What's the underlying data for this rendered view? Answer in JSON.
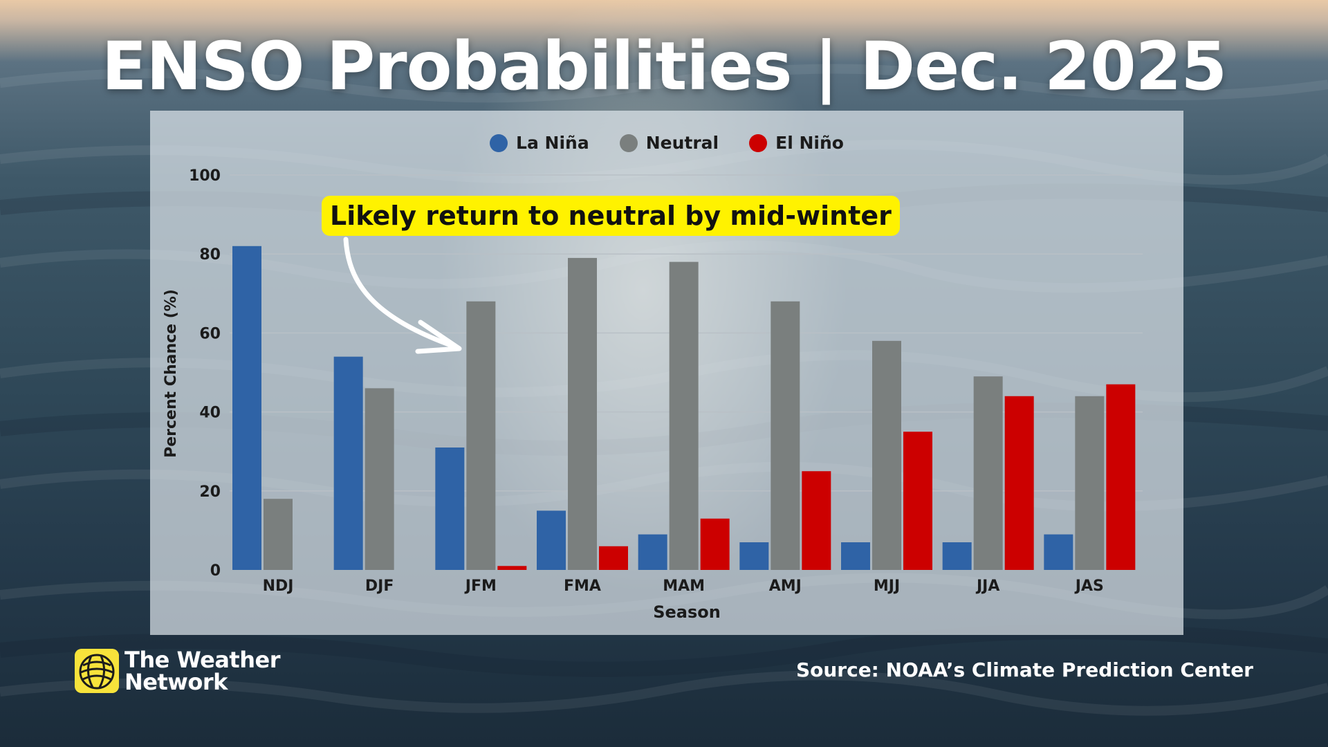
{
  "title": "ENSO Probabilities | Dec. 2025",
  "annotation": "Likely return to neutral by mid-winter",
  "source": "Source: NOAA’s Climate Prediction Center",
  "logo": {
    "line1": "The Weather",
    "line2": "Network",
    "icon": "globe-icon"
  },
  "colors": {
    "la_nina": "#2f63a6",
    "neutral": "#7a7f7e",
    "el_nino": "#cc0000",
    "callout": "#fff200"
  },
  "chart_data": {
    "type": "bar",
    "xlabel": "Season",
    "ylabel": "Percent Chance (%)",
    "ylim": [
      0,
      100
    ],
    "yticks": [
      0,
      20,
      40,
      60,
      80,
      100
    ],
    "grid": true,
    "legend_position": "top",
    "categories": [
      "NDJ",
      "DJF",
      "JFM",
      "FMA",
      "MAM",
      "AMJ",
      "MJJ",
      "JJA",
      "JAS"
    ],
    "series": [
      {
        "name": "La Niña",
        "color": "#2f63a6",
        "values": [
          82,
          54,
          31,
          15,
          9,
          7,
          7,
          7,
          9
        ]
      },
      {
        "name": "Neutral",
        "color": "#7a7f7e",
        "values": [
          18,
          46,
          68,
          79,
          78,
          68,
          58,
          49,
          44
        ]
      },
      {
        "name": "El Niño",
        "color": "#cc0000",
        "values": [
          0,
          0,
          1,
          6,
          13,
          25,
          35,
          44,
          47
        ]
      }
    ]
  }
}
